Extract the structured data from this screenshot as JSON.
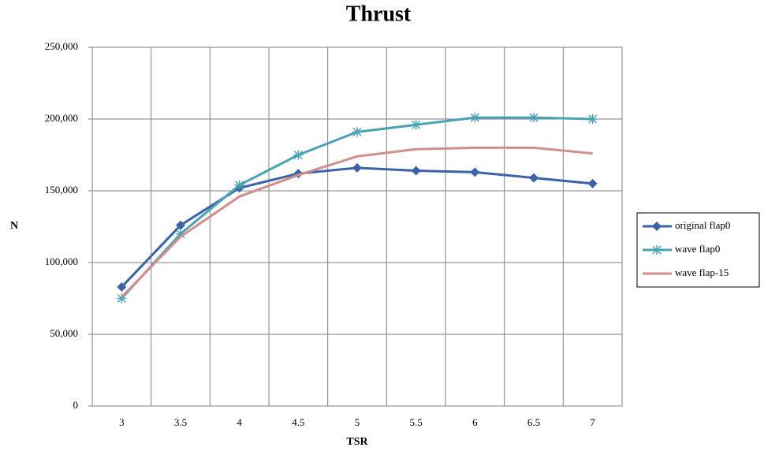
{
  "chart_data": {
    "type": "line",
    "title": "Thrust",
    "x_label": "TSR",
    "y_label": "N",
    "categories": [
      "3",
      "3.5",
      "4",
      "4.5",
      "5",
      "5.5",
      "6",
      "6.5",
      "7"
    ],
    "series": [
      {
        "name": "original flap0",
        "color": "#3c63a8",
        "marker": "diamond",
        "values": [
          83000,
          126000,
          152000,
          162000,
          166000,
          164000,
          163000,
          159000,
          155000
        ]
      },
      {
        "name": "wave flap0",
        "color": "#4aa3b5",
        "marker": "star",
        "values": [
          75000,
          120000,
          154000,
          175000,
          191000,
          196000,
          201000,
          201000,
          200000
        ]
      },
      {
        "name": "wave flap-15",
        "color": "#d08f8c",
        "marker": "none",
        "values": [
          76000,
          118000,
          146000,
          161000,
          174000,
          179000,
          180000,
          180000,
          176000
        ]
      }
    ],
    "ylim": [
      0,
      250000
    ],
    "yticks": [
      0,
      {
        "value": 50000,
        "label": "50,000"
      },
      {
        "value": 100000,
        "label": "100,000"
      },
      {
        "value": 150000,
        "label": "150,000"
      },
      {
        "value": 200000,
        "label": "200,000"
      },
      {
        "value": 250000,
        "label": "250,000"
      }
    ],
    "grid": true,
    "legend": "right"
  }
}
